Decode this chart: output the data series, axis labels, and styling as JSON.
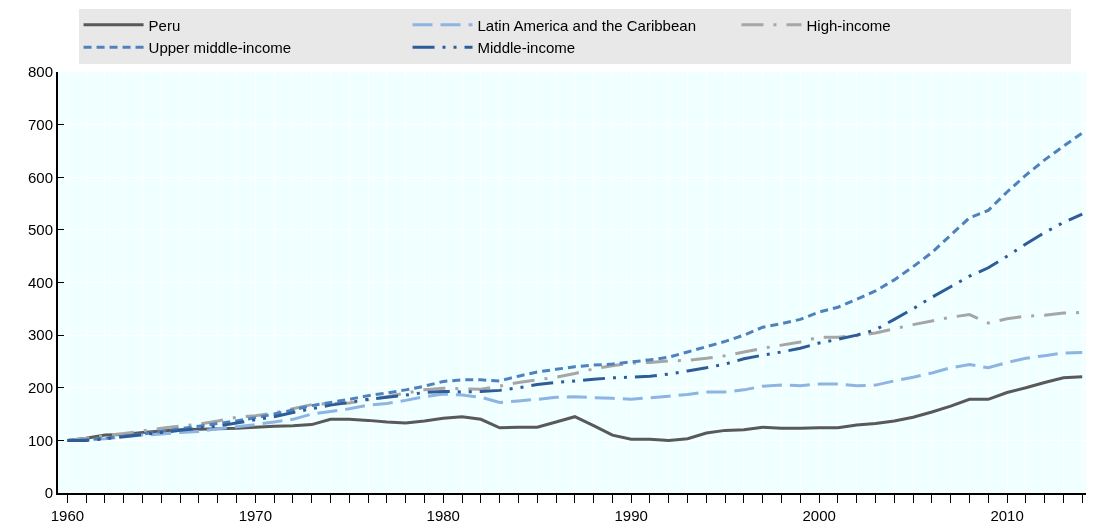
{
  "chart_data": {
    "type": "line",
    "x": [
      1960,
      1961,
      1962,
      1963,
      1964,
      1965,
      1966,
      1967,
      1968,
      1969,
      1970,
      1971,
      1972,
      1973,
      1974,
      1975,
      1976,
      1977,
      1978,
      1979,
      1980,
      1981,
      1982,
      1983,
      1984,
      1985,
      1986,
      1987,
      1988,
      1989,
      1990,
      1991,
      1992,
      1993,
      1994,
      1995,
      1996,
      1997,
      1998,
      1999,
      2000,
      2001,
      2002,
      2003,
      2004,
      2005,
      2006,
      2007,
      2008,
      2009,
      2010,
      2011,
      2012,
      2013,
      2014
    ],
    "series": [
      {
        "name": "Peru",
        "color": "#595959",
        "line_style": "solid",
        "values": [
          100,
          104,
          110,
          111,
          115,
          118,
          120,
          121,
          122,
          123,
          125,
          127,
          128,
          130,
          140,
          140,
          138,
          135,
          133,
          137,
          142,
          145,
          140,
          124,
          125,
          125,
          135,
          145,
          128,
          110,
          102,
          102,
          100,
          103,
          114,
          119,
          120,
          125,
          123,
          123,
          124,
          124,
          129,
          132,
          137,
          144,
          154,
          165,
          178,
          178,
          191,
          200,
          210,
          219,
          221
        ]
      },
      {
        "name": "Latin America and the Caribbean",
        "color": "#8db4e2",
        "line_style": "dashed",
        "values": [
          100,
          101,
          103,
          107,
          110,
          112,
          115,
          117,
          122,
          126,
          130,
          135,
          140,
          150,
          155,
          160,
          167,
          170,
          176,
          183,
          188,
          186,
          182,
          172,
          175,
          178,
          182,
          183,
          181,
          180,
          178,
          181,
          184,
          187,
          192,
          192,
          196,
          203,
          205,
          204,
          207,
          207,
          204,
          205,
          213,
          220,
          228,
          238,
          244,
          238,
          248,
          256,
          261,
          266,
          267
        ]
      },
      {
        "name": "High-income",
        "color": "#a6a6a6",
        "line_style": "dashdot",
        "values": [
          100,
          104,
          109,
          113,
          118,
          123,
          127,
          131,
          137,
          144,
          147,
          152,
          160,
          168,
          170,
          171,
          177,
          183,
          190,
          196,
          199,
          198,
          197,
          203,
          210,
          215,
          220,
          227,
          236,
          242,
          247,
          248,
          251,
          252,
          256,
          261,
          268,
          275,
          281,
          287,
          296,
          296,
          299,
          304,
          312,
          320,
          327,
          334,
          339,
          323,
          331,
          336,
          338,
          342,
          343
        ]
      },
      {
        "name": "Upper middle-income",
        "color": "#4f81bd",
        "line_style": "dotted",
        "values": [
          100,
          101,
          104,
          108,
          112,
          117,
          122,
          127,
          132,
          137,
          143,
          150,
          158,
          166,
          172,
          178,
          185,
          190,
          196,
          203,
          212,
          215,
          215,
          213,
          222,
          230,
          235,
          240,
          243,
          245,
          249,
          253,
          258,
          268,
          278,
          288,
          300,
          315,
          322,
          330,
          344,
          353,
          368,
          384,
          405,
          430,
          457,
          490,
          523,
          537,
          572,
          604,
          633,
          659,
          684
        ]
      },
      {
        "name": "Middle-income",
        "color": "#2e5c99",
        "line_style": "longdashdot",
        "values": [
          100,
          100,
          103,
          107,
          111,
          115,
          119,
          123,
          127,
          133,
          139,
          145,
          153,
          160,
          167,
          172,
          178,
          182,
          186,
          191,
          193,
          192,
          193,
          195,
          200,
          206,
          210,
          213,
          216,
          219,
          220,
          222,
          226,
          232,
          238,
          245,
          255,
          262,
          268,
          275,
          285,
          292,
          300,
          310,
          330,
          350,
          372,
          392,
          412,
          428,
          450,
          473,
          495,
          514,
          530
        ]
      }
    ],
    "xlim": [
      1959.5,
      2014.2
    ],
    "xticks": [
      1960,
      1970,
      1980,
      1990,
      2000,
      2010
    ],
    "ylim": [
      0,
      800
    ],
    "yticks": [
      0,
      100,
      200,
      300,
      400,
      500,
      600,
      700,
      800
    ],
    "grid": true,
    "legend": "top"
  }
}
